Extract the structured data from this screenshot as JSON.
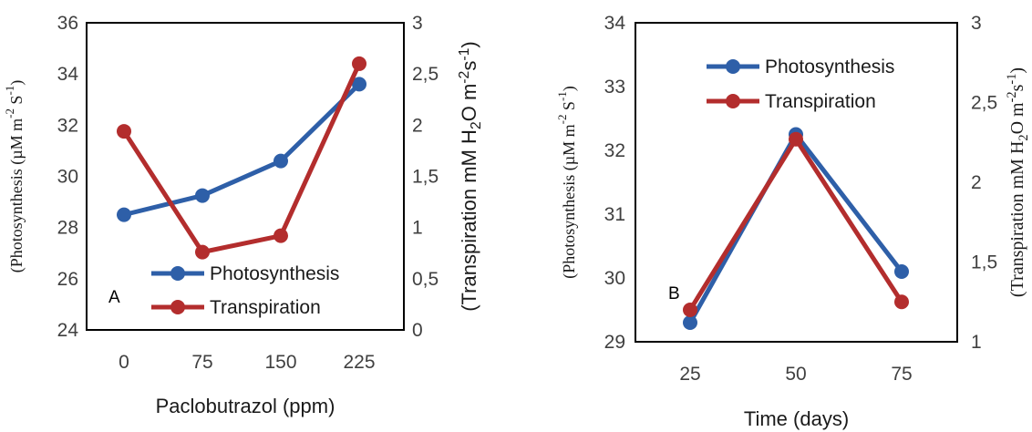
{
  "chart_data": [
    {
      "type": "line",
      "panel_label": "A",
      "categories": [
        "0",
        "75",
        "150",
        "225"
      ],
      "xlabel": "Paclobutrazol (ppm)",
      "ylabel_left": {
        "pre": "(Photosynthesis (",
        "unit": "µM m",
        "sup1": "-2",
        "s": " S",
        "sup2": "-1",
        "post": ")"
      },
      "ylabel_right": {
        "pre": "(Transpiration mM H",
        "sub": "2",
        "mid": "O m",
        "sup1": "-2",
        "s": "s",
        "sup2": "-1",
        "post": ")"
      },
      "ylim_left": [
        24,
        36
      ],
      "yticks_left": [
        "24",
        "26",
        "28",
        "30",
        "32",
        "34",
        "36"
      ],
      "ylim_right": [
        0,
        3
      ],
      "yticks_right": [
        "0",
        "0,5",
        "1",
        "1,5",
        "2",
        "2,5",
        "3"
      ],
      "legend_placement": "bottom-right",
      "series": [
        {
          "name": "Photosynthesis",
          "axis": "left",
          "color": "#2e5fa8",
          "values": [
            28.5,
            29.25,
            30.6,
            33.6
          ]
        },
        {
          "name": "Transpiration",
          "axis": "right",
          "color": "#b32d2d",
          "values": [
            1.94,
            0.76,
            0.92,
            2.6
          ]
        }
      ]
    },
    {
      "type": "line",
      "panel_label": "B",
      "categories": [
        "25",
        "50",
        "75"
      ],
      "xlabel": "Time (days)",
      "ylabel_left": {
        "pre": "(Photosynthesis (",
        "unit": "µM m",
        "sup1": "-2",
        "s": " S",
        "sup2": "-1",
        "post": ")"
      },
      "ylabel_right": {
        "pre": "(Transpiration mM H",
        "sub": "2",
        "mid": "O m",
        "sup1": "-2",
        "s": "s",
        "sup2": "-1",
        "post": ")"
      },
      "ylim_left": [
        29,
        34
      ],
      "yticks_left": [
        "29",
        "30",
        "31",
        "32",
        "33",
        "34"
      ],
      "ylim_right": [
        1,
        3
      ],
      "yticks_right": [
        "1",
        "1,5",
        "2",
        "2,5",
        "3"
      ],
      "legend_placement": "top-left",
      "series": [
        {
          "name": "Photosynthesis",
          "axis": "left",
          "color": "#2e5fa8",
          "values": [
            29.3,
            32.25,
            30.1
          ]
        },
        {
          "name": "Transpiration",
          "axis": "right",
          "color": "#b32d2d",
          "values": [
            1.2,
            2.27,
            1.25
          ]
        }
      ]
    }
  ]
}
